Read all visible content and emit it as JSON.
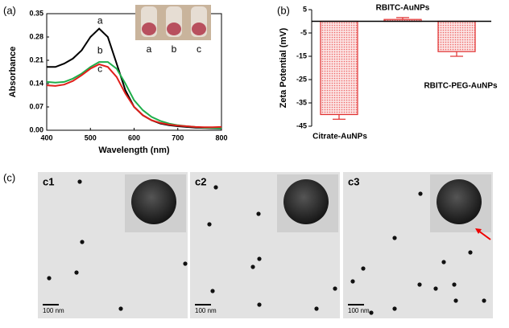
{
  "chart_data": [
    {
      "type": "line",
      "panel": "(a)",
      "xlabel": "Wavelength (nm)",
      "ylabel": "Absorbance",
      "x": [
        400,
        420,
        440,
        460,
        480,
        500,
        520,
        540,
        560,
        580,
        600,
        620,
        640,
        660,
        680,
        700,
        720,
        740,
        760,
        780,
        800
      ],
      "series": [
        {
          "name": "a",
          "color": "#000000",
          "values": [
            0.19,
            0.19,
            0.2,
            0.215,
            0.24,
            0.28,
            0.305,
            0.28,
            0.2,
            0.12,
            0.07,
            0.045,
            0.03,
            0.02,
            0.015,
            0.012,
            0.01,
            0.008,
            0.007,
            0.006,
            0.005
          ]
        },
        {
          "name": "b",
          "color": "#1fae4a",
          "values": [
            0.145,
            0.143,
            0.145,
            0.155,
            0.17,
            0.19,
            0.205,
            0.205,
            0.185,
            0.14,
            0.09,
            0.06,
            0.04,
            0.028,
            0.02,
            0.015,
            0.012,
            0.01,
            0.008,
            0.007,
            0.006
          ]
        },
        {
          "name": "c",
          "color": "#e0201b",
          "values": [
            0.135,
            0.133,
            0.137,
            0.148,
            0.165,
            0.185,
            0.198,
            0.19,
            0.16,
            0.11,
            0.07,
            0.045,
            0.03,
            0.022,
            0.017,
            0.014,
            0.012,
            0.01,
            0.009,
            0.009,
            0.01
          ]
        }
      ],
      "xlim": [
        400,
        800
      ],
      "xticks": [
        400,
        500,
        600,
        700,
        800
      ],
      "ylim": [
        0,
        0.35
      ],
      "yticks": [
        {
          "value": 0,
          "label": "0.00"
        },
        0.07,
        0.14,
        0.21,
        0.28,
        0.35
      ]
    },
    {
      "type": "bar",
      "panel": "(b)",
      "ylabel": "Zeta Potential (mV)",
      "categories": [
        "Citrate-AuNPs",
        "RBITC-AuNPs",
        "RBITC-PEG-AuNPs"
      ],
      "values": [
        -40,
        0.8,
        -13
      ],
      "errors": [
        2,
        0.8,
        2
      ],
      "color": "#e03030",
      "ylim": [
        -45,
        5
      ],
      "yticks": [
        5,
        -5,
        -15,
        -25,
        -35,
        -45
      ]
    }
  ],
  "panel_c": {
    "label": "(c)",
    "images": [
      {
        "label": "c1",
        "scale": "100 nm"
      },
      {
        "label": "c2",
        "scale": "100 nm"
      },
      {
        "label": "c3",
        "scale": "100 nm"
      }
    ]
  }
}
